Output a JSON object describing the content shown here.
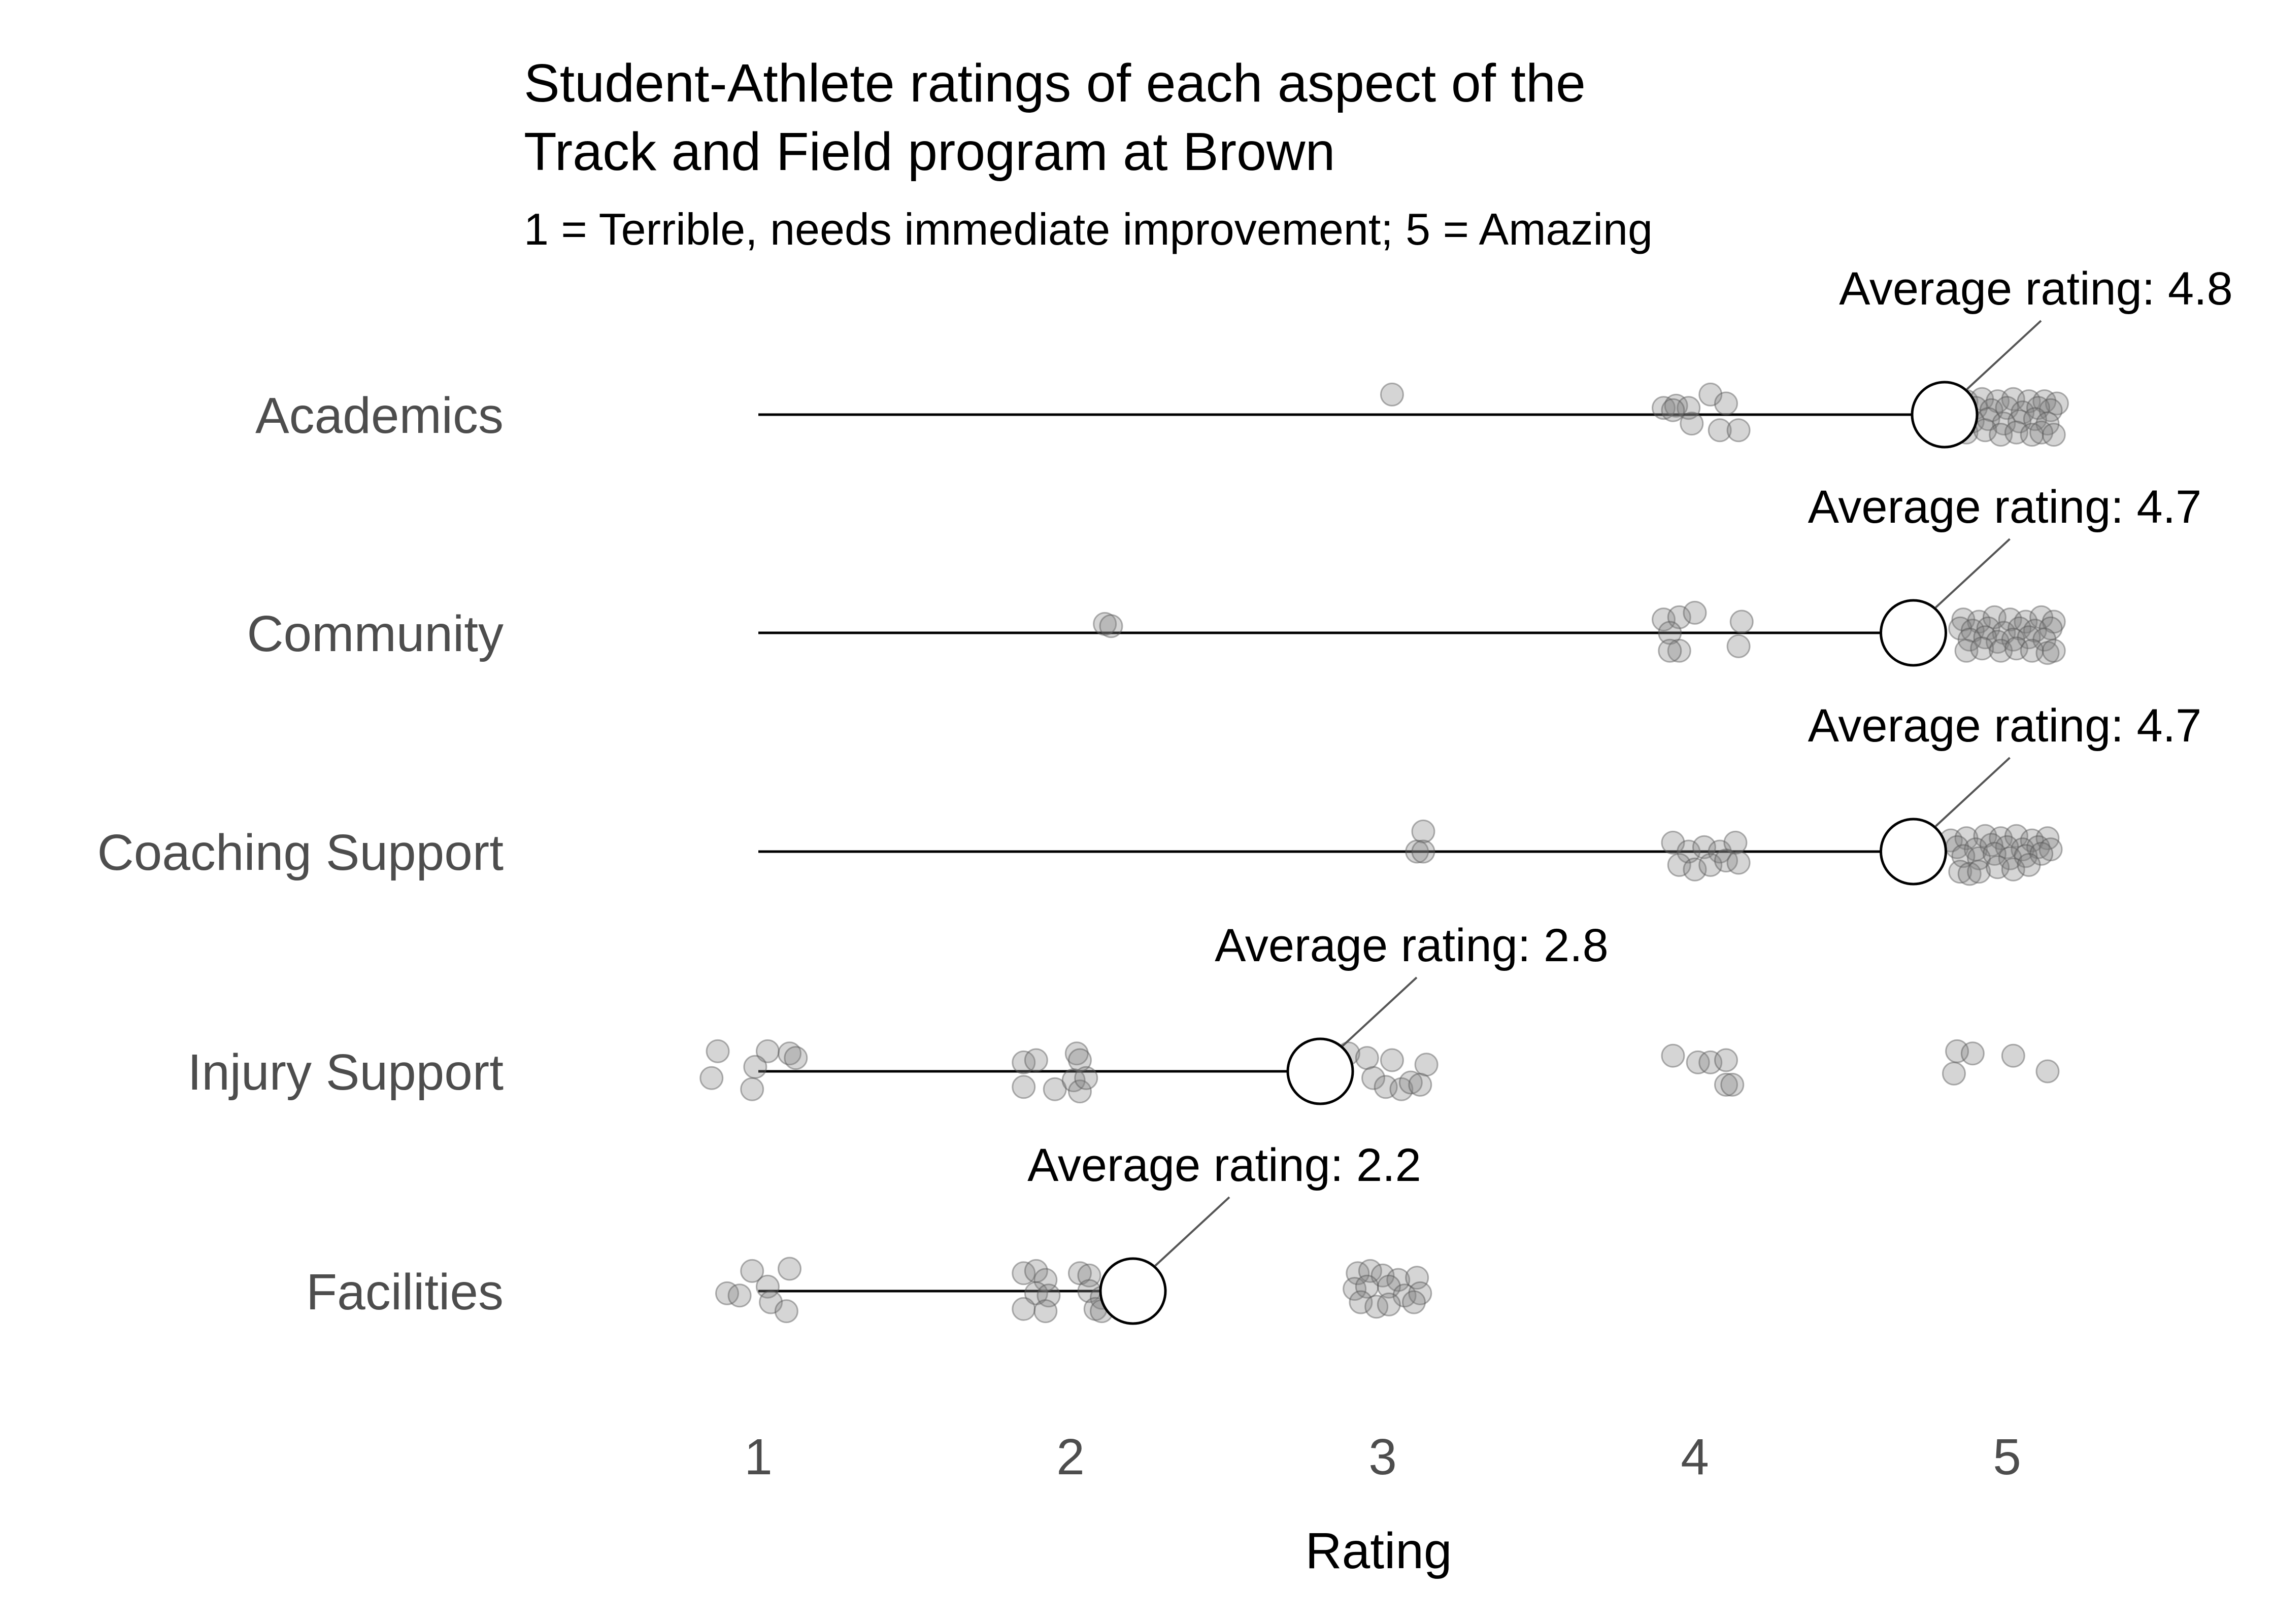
{
  "chart_data": {
    "type": "scatter",
    "title_lines": [
      "Student-Athlete ratings of each aspect of the",
      "Track and Field program at Brown"
    ],
    "subtitle": "1 = Terrible, needs immediate improvement; 5 = Amazing",
    "xlabel": "Rating",
    "ylabel": "",
    "xlim": [
      0.55,
      5.45
    ],
    "xticks": [
      1,
      2,
      3,
      4,
      5
    ],
    "grid": false,
    "legend": "none",
    "colors": {
      "point": "#7f7f7f",
      "line": "#000000",
      "mean_fill": "#ffffff",
      "mean_stroke": "#000000",
      "connector": "#555555"
    },
    "categories": [
      {
        "name": "Academics",
        "average": 4.8,
        "annotation": "Average rating: 4.8",
        "points": [
          [
            3.03,
            0.09
          ],
          [
            3.9,
            0.03
          ],
          [
            3.94,
            0.04
          ],
          [
            3.98,
            0.03
          ],
          [
            4.05,
            0.09
          ],
          [
            4.1,
            0.05
          ],
          [
            3.93,
            0.02
          ],
          [
            3.99,
            -0.04
          ],
          [
            4.08,
            -0.07
          ],
          [
            4.14,
            -0.07
          ],
          [
            4.87,
            0.06
          ],
          [
            4.92,
            0.07
          ],
          [
            4.97,
            0.06
          ],
          [
            5.02,
            0.07
          ],
          [
            5.07,
            0.06
          ],
          [
            5.12,
            0.06
          ],
          [
            5.16,
            0.05
          ],
          [
            4.86,
            0.01
          ],
          [
            4.9,
            0.03
          ],
          [
            4.95,
            0.02
          ],
          [
            5.0,
            0.03
          ],
          [
            5.05,
            0.01
          ],
          [
            5.1,
            0.03
          ],
          [
            5.14,
            0.02
          ],
          [
            4.89,
            -0.03
          ],
          [
            4.94,
            -0.02
          ],
          [
            4.99,
            -0.04
          ],
          [
            5.04,
            -0.03
          ],
          [
            5.09,
            -0.02
          ],
          [
            5.13,
            -0.04
          ],
          [
            4.87,
            -0.08
          ],
          [
            4.93,
            -0.07
          ],
          [
            4.98,
            -0.09
          ],
          [
            5.03,
            -0.08
          ],
          [
            5.08,
            -0.09
          ],
          [
            5.11,
            -0.08
          ],
          [
            5.15,
            -0.09
          ]
        ]
      },
      {
        "name": "Community",
        "average": 4.7,
        "annotation": "Average rating: 4.7",
        "points": [
          [
            2.11,
            0.04
          ],
          [
            2.13,
            0.03
          ],
          [
            3.9,
            0.06
          ],
          [
            3.95,
            0.07
          ],
          [
            4.0,
            0.09
          ],
          [
            4.15,
            0.05
          ],
          [
            3.92,
            0.0
          ],
          [
            3.95,
            -0.08
          ],
          [
            3.92,
            -0.08
          ],
          [
            4.14,
            -0.06
          ],
          [
            4.86,
            0.06
          ],
          [
            4.91,
            0.05
          ],
          [
            4.96,
            0.07
          ],
          [
            5.01,
            0.06
          ],
          [
            5.06,
            0.05
          ],
          [
            5.11,
            0.07
          ],
          [
            5.15,
            0.05
          ],
          [
            4.85,
            0.02
          ],
          [
            4.89,
            0.01
          ],
          [
            4.94,
            0.02
          ],
          [
            4.99,
            0.0
          ],
          [
            5.04,
            0.02
          ],
          [
            5.09,
            0.01
          ],
          [
            5.14,
            0.02
          ],
          [
            4.88,
            -0.03
          ],
          [
            4.93,
            -0.02
          ],
          [
            4.97,
            -0.04
          ],
          [
            5.02,
            -0.03
          ],
          [
            5.07,
            -0.02
          ],
          [
            5.12,
            -0.03
          ],
          [
            4.87,
            -0.08
          ],
          [
            4.92,
            -0.07
          ],
          [
            4.98,
            -0.08
          ],
          [
            5.03,
            -0.07
          ],
          [
            5.08,
            -0.08
          ],
          [
            5.13,
            -0.09
          ],
          [
            5.15,
            -0.08
          ]
        ]
      },
      {
        "name": "Coaching Support",
        "average": 4.7,
        "annotation": "Average rating: 4.7",
        "points": [
          [
            3.13,
            0.09
          ],
          [
            3.11,
            0.0
          ],
          [
            3.13,
            0.0
          ],
          [
            3.93,
            0.04
          ],
          [
            3.98,
            0.0
          ],
          [
            4.03,
            0.02
          ],
          [
            4.08,
            0.0
          ],
          [
            4.13,
            0.04
          ],
          [
            3.95,
            -0.06
          ],
          [
            4.0,
            -0.08
          ],
          [
            4.05,
            -0.06
          ],
          [
            4.1,
            -0.04
          ],
          [
            4.14,
            -0.05
          ],
          [
            4.82,
            0.05
          ],
          [
            4.87,
            0.06
          ],
          [
            4.93,
            0.07
          ],
          [
            4.98,
            0.06
          ],
          [
            5.03,
            0.07
          ],
          [
            5.08,
            0.05
          ],
          [
            5.13,
            0.06
          ],
          [
            4.84,
            0.02
          ],
          [
            4.9,
            0.01
          ],
          [
            4.95,
            0.03
          ],
          [
            5.0,
            0.02
          ],
          [
            5.05,
            0.01
          ],
          [
            5.1,
            0.02
          ],
          [
            5.14,
            0.01
          ],
          [
            4.86,
            -0.02
          ],
          [
            4.91,
            -0.03
          ],
          [
            4.96,
            -0.01
          ],
          [
            5.01,
            -0.03
          ],
          [
            5.06,
            -0.02
          ],
          [
            5.11,
            -0.01
          ],
          [
            4.85,
            -0.09
          ],
          [
            4.88,
            -0.1
          ],
          [
            4.91,
            -0.09
          ],
          [
            4.97,
            -0.07
          ],
          [
            5.02,
            -0.08
          ],
          [
            5.07,
            -0.06
          ]
        ]
      },
      {
        "name": "Injury Support",
        "average": 2.8,
        "annotation": "Average rating: 2.8",
        "points": [
          [
            0.87,
            0.09
          ],
          [
            1.03,
            0.09
          ],
          [
            1.1,
            0.08
          ],
          [
            1.12,
            0.06
          ],
          [
            0.99,
            0.02
          ],
          [
            0.85,
            -0.03
          ],
          [
            0.98,
            -0.08
          ],
          [
            1.85,
            0.04
          ],
          [
            1.89,
            0.05
          ],
          [
            2.02,
            0.08
          ],
          [
            2.03,
            0.05
          ],
          [
            1.85,
            -0.07
          ],
          [
            1.95,
            -0.08
          ],
          [
            2.01,
            -0.04
          ],
          [
            2.03,
            -0.09
          ],
          [
            2.05,
            -0.03
          ],
          [
            2.89,
            0.08
          ],
          [
            2.95,
            0.06
          ],
          [
            3.03,
            0.05
          ],
          [
            3.14,
            0.03
          ],
          [
            2.97,
            -0.03
          ],
          [
            3.01,
            -0.07
          ],
          [
            3.06,
            -0.08
          ],
          [
            3.09,
            -0.05
          ],
          [
            3.12,
            -0.06
          ],
          [
            3.93,
            0.07
          ],
          [
            4.01,
            0.04
          ],
          [
            4.05,
            0.04
          ],
          [
            4.1,
            0.05
          ],
          [
            4.1,
            -0.06
          ],
          [
            4.12,
            -0.06
          ],
          [
            4.84,
            0.09
          ],
          [
            4.89,
            0.08
          ],
          [
            5.02,
            0.07
          ],
          [
            4.83,
            -0.01
          ],
          [
            5.13,
            0.0
          ]
        ]
      },
      {
        "name": "Facilities",
        "average": 2.2,
        "annotation": "Average rating: 2.2",
        "points": [
          [
            0.98,
            0.09
          ],
          [
            1.1,
            0.1
          ],
          [
            1.03,
            0.02
          ],
          [
            0.9,
            -0.01
          ],
          [
            0.94,
            -0.02
          ],
          [
            1.04,
            -0.05
          ],
          [
            1.09,
            -0.09
          ],
          [
            1.85,
            0.08
          ],
          [
            1.89,
            0.09
          ],
          [
            1.92,
            0.05
          ],
          [
            2.03,
            0.08
          ],
          [
            2.06,
            0.07
          ],
          [
            1.89,
            -0.01
          ],
          [
            1.93,
            -0.02
          ],
          [
            2.06,
            0.0
          ],
          [
            2.1,
            -0.03
          ],
          [
            1.85,
            -0.08
          ],
          [
            1.92,
            -0.09
          ],
          [
            2.08,
            -0.08
          ],
          [
            2.1,
            -0.09
          ],
          [
            2.92,
            0.08
          ],
          [
            2.96,
            0.09
          ],
          [
            3.0,
            0.07
          ],
          [
            3.05,
            0.05
          ],
          [
            3.11,
            0.06
          ],
          [
            2.91,
            0.01
          ],
          [
            2.95,
            0.02
          ],
          [
            3.02,
            0.02
          ],
          [
            3.07,
            -0.02
          ],
          [
            3.12,
            -0.01
          ],
          [
            2.93,
            -0.05
          ],
          [
            2.98,
            -0.07
          ],
          [
            3.02,
            -0.06
          ],
          [
            3.1,
            -0.05
          ]
        ]
      }
    ]
  }
}
